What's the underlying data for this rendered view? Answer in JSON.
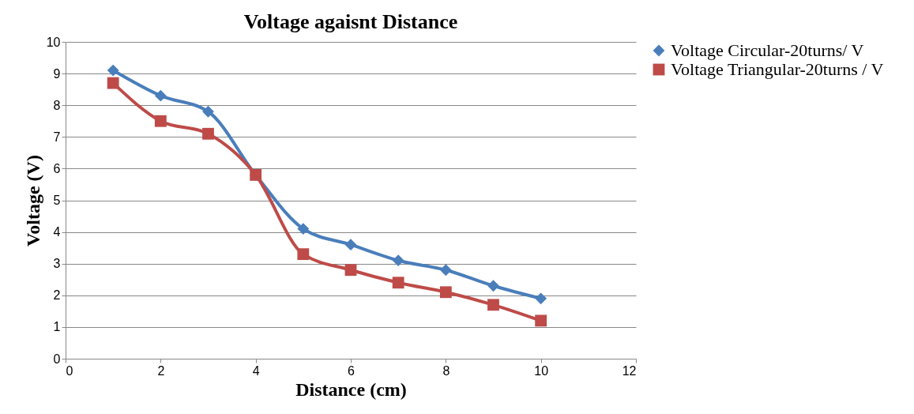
{
  "chart_data": {
    "type": "line",
    "title": "Voltage agaisnt Distance",
    "xlabel": "Distance (cm)",
    "ylabel": "Voltage (V)",
    "x": [
      1,
      2,
      3,
      4,
      5,
      6,
      7,
      8,
      9,
      10
    ],
    "series": [
      {
        "name": "Voltage Circular-20turns/ V",
        "color": "#4a7ebb",
        "marker": "diamond",
        "values": [
          9.1,
          8.3,
          7.8,
          5.8,
          4.1,
          3.6,
          3.1,
          2.8,
          2.3,
          1.9
        ]
      },
      {
        "name": "Voltage Triangular-20turns / V",
        "color": "#be4b48",
        "marker": "square",
        "values": [
          8.7,
          7.5,
          7.1,
          5.8,
          3.3,
          2.8,
          2.4,
          2.1,
          1.7,
          1.2
        ]
      }
    ],
    "xlim": [
      0,
      12
    ],
    "xticks": [
      0,
      2,
      4,
      6,
      8,
      10,
      12
    ],
    "ylim": [
      0,
      10
    ],
    "yticks": [
      0,
      1,
      2,
      3,
      4,
      5,
      6,
      7,
      8,
      9,
      10
    ],
    "grid": "y",
    "legend": "right",
    "line_style": "solid"
  }
}
